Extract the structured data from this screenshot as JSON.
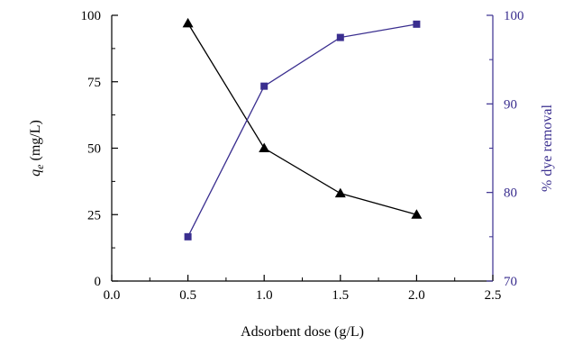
{
  "chart_data": {
    "type": "line",
    "xlabel": "Adsorbent dose (g/L)",
    "ylabel_left": {
      "var": "q",
      "sub": "e",
      "unit": " (mg/L)"
    },
    "ylabel_right": "% dye removal",
    "xlim": [
      0.0,
      2.5
    ],
    "ylim_left": [
      0,
      100
    ],
    "ylim_right": [
      70,
      100
    ],
    "x_ticks": [
      "0.0",
      "0.5",
      "1.0",
      "1.5",
      "2.0",
      "2.5"
    ],
    "y_left_ticks": [
      "0",
      "25",
      "50",
      "75",
      "100"
    ],
    "y_right_ticks": [
      "70",
      "80",
      "90",
      "100"
    ],
    "grid": false,
    "series": [
      {
        "axis": "left",
        "marker": "triangle",
        "color": "#000000",
        "x": [
          0.5,
          1.0,
          1.5,
          2.0
        ],
        "values": [
          97,
          50,
          33,
          25
        ]
      },
      {
        "axis": "right",
        "marker": "square",
        "color": "#3a2e8f",
        "x": [
          0.5,
          1.0,
          1.5,
          2.0
        ],
        "values": [
          75,
          92,
          97.5,
          99
        ]
      }
    ]
  },
  "colors": {
    "left_axis": "#000000",
    "right_axis": "#3a2e8f"
  }
}
